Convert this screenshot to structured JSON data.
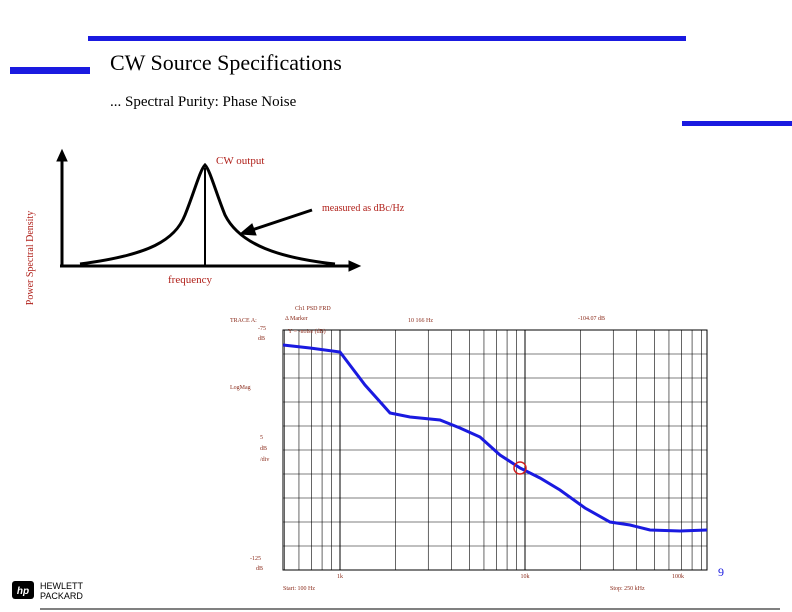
{
  "header": {
    "title": "CW Source Specifications",
    "subtitle": "... Spectral Purity: Phase Noise"
  },
  "diagram": {
    "peak_label": "CW output",
    "arrow_label": "measured as dBc/Hz",
    "y_label": "Power Spectral Density",
    "x_label": "frequency"
  },
  "plot": {
    "trace": "TRACE A:",
    "channel": "Ch1 PSD FRD",
    "marker": "Δ Marker",
    "marker_x": "10 166 Hz",
    "marker_y": "-104.07 dB",
    "axis_note": "Y = -noise (dB)",
    "top_value": "-75",
    "top_unit": "dB",
    "scale_type": "LogMag",
    "div_value": "5",
    "div_unit": "dB",
    "div_per": "/div",
    "bottom_value": "-125",
    "bottom_unit": "dB",
    "x_labels": [
      "1k",
      "10k",
      "100k"
    ],
    "start": "Start: 100 Hz",
    "stop": "Stop: 250 kHz"
  },
  "footer": {
    "page": "9",
    "brand_line1": "HEWLETT",
    "brand_line2": "PACKARD"
  }
}
